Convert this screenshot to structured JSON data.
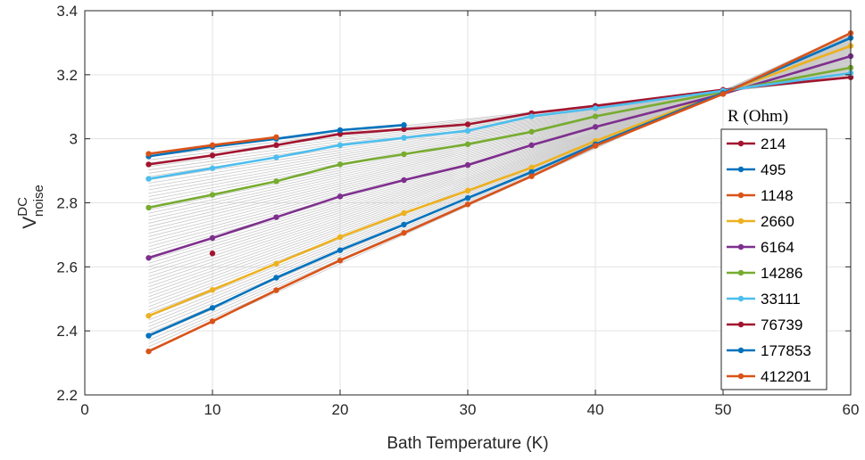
{
  "chart_data": {
    "type": "line",
    "xlabel": "Bath Temperature (K)",
    "ylabel": {
      "base": "V",
      "superscript": "DC",
      "subscript": "noise"
    },
    "xlim": [
      0,
      60
    ],
    "ylim": [
      2.2,
      3.4
    ],
    "xticks": [
      0,
      10,
      20,
      30,
      40,
      50,
      60
    ],
    "yticks": [
      2.2,
      2.4,
      2.6,
      2.8,
      3,
      3.2,
      3.4
    ],
    "xtick_labels": [
      "0",
      "10",
      "20",
      "30",
      "40",
      "50",
      "60"
    ],
    "ytick_labels": [
      "2.2",
      "2.4",
      "2.6",
      "2.8",
      "3",
      "3.2",
      "3.4"
    ],
    "grid": true,
    "legend": {
      "title": "R (Ohm)",
      "placement": "right"
    },
    "background_lines": {
      "count": 60,
      "color": "#c8c8c8",
      "x_start": 5,
      "x_end": 60,
      "y_start_range": [
        2.34,
        2.955
      ],
      "y_end_range": [
        3.19,
        3.33
      ]
    },
    "series": [
      {
        "name": "214",
        "color": "#a2142f",
        "x": [
          5,
          10,
          15,
          20,
          25,
          30,
          35,
          40,
          50,
          60
        ],
        "y": [
          2.92,
          2.948,
          2.98,
          3.015,
          3.03,
          3.045,
          3.08,
          3.103,
          3.153,
          3.192
        ]
      },
      {
        "name": "495",
        "color": "#0072bd",
        "x": [
          5,
          10,
          15,
          20,
          25
        ],
        "y": [
          2.945,
          2.975,
          3.0,
          3.027,
          3.043
        ]
      },
      {
        "name": "1148",
        "color": "#d95319",
        "x": [
          5,
          10,
          15
        ],
        "y": [
          2.953,
          2.98,
          3.005
        ]
      },
      {
        "name": "2660",
        "color": "#edb120",
        "x": [
          5,
          10,
          15,
          20,
          25,
          30,
          35,
          40,
          50,
          60
        ],
        "y": [
          2.447,
          2.528,
          2.61,
          2.693,
          2.768,
          2.838,
          2.91,
          2.993,
          3.145,
          3.29
        ]
      },
      {
        "name": "6164",
        "color": "#7e2f8e",
        "x": [
          5,
          10,
          15,
          20,
          25,
          30,
          35,
          40,
          50,
          60
        ],
        "y": [
          2.628,
          2.69,
          2.755,
          2.82,
          2.871,
          2.918,
          2.98,
          3.037,
          3.14,
          3.258
        ]
      },
      {
        "name": "14286",
        "color": "#77ac30",
        "x": [
          5,
          10,
          15,
          20,
          25,
          30,
          35,
          40,
          50,
          60
        ],
        "y": [
          2.785,
          2.825,
          2.867,
          2.92,
          2.952,
          2.983,
          3.022,
          3.07,
          3.147,
          3.222
        ]
      },
      {
        "name": "33111",
        "color": "#4dbeee",
        "x": [
          5,
          10,
          15,
          20,
          25,
          30,
          35,
          40,
          50,
          60
        ],
        "y": [
          2.875,
          2.908,
          2.942,
          2.98,
          3.003,
          3.025,
          3.07,
          3.095,
          3.15,
          3.205
        ]
      },
      {
        "name": "76739",
        "color": "#a2142f",
        "x": [
          10
        ],
        "y": [
          2.642
        ]
      },
      {
        "name": "177853",
        "color": "#0072bd",
        "x": [
          5,
          10,
          15,
          20,
          25,
          30,
          35,
          40,
          50,
          60
        ],
        "y": [
          2.385,
          2.472,
          2.566,
          2.652,
          2.732,
          2.815,
          2.896,
          2.983,
          3.143,
          3.315
        ]
      },
      {
        "name": "412201",
        "color": "#d95319",
        "x": [
          5,
          10,
          15,
          20,
          25,
          30,
          35,
          40,
          50,
          60
        ],
        "y": [
          2.336,
          2.43,
          2.527,
          2.62,
          2.706,
          2.795,
          2.883,
          2.978,
          3.14,
          3.33
        ]
      }
    ]
  }
}
